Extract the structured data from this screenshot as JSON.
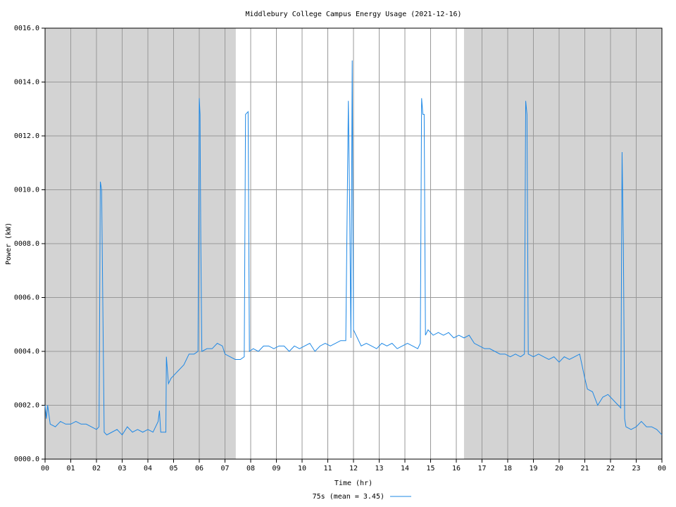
{
  "chart_data": {
    "type": "line",
    "title": "Middlebury College Campus Energy Usage (2021-12-16)",
    "x_label": "Time (hr)",
    "y_label": "Power (kW)",
    "xlim": [
      0,
      24
    ],
    "ylim": [
      0,
      16
    ],
    "xticks": [
      {
        "value": 0,
        "label": "00"
      },
      {
        "value": 1,
        "label": "01"
      },
      {
        "value": 2,
        "label": "02"
      },
      {
        "value": 3,
        "label": "03"
      },
      {
        "value": 4,
        "label": "04"
      },
      {
        "value": 5,
        "label": "05"
      },
      {
        "value": 6,
        "label": "06"
      },
      {
        "value": 7,
        "label": "07"
      },
      {
        "value": 8,
        "label": "08"
      },
      {
        "value": 9,
        "label": "09"
      },
      {
        "value": 10,
        "label": "10"
      },
      {
        "value": 11,
        "label": "11"
      },
      {
        "value": 12,
        "label": "12"
      },
      {
        "value": 13,
        "label": "13"
      },
      {
        "value": 14,
        "label": "14"
      },
      {
        "value": 15,
        "label": "15"
      },
      {
        "value": 16,
        "label": "16"
      },
      {
        "value": 17,
        "label": "17"
      },
      {
        "value": 18,
        "label": "18"
      },
      {
        "value": 19,
        "label": "19"
      },
      {
        "value": 20,
        "label": "20"
      },
      {
        "value": 21,
        "label": "21"
      },
      {
        "value": 22,
        "label": "22"
      },
      {
        "value": 23,
        "label": "23"
      },
      {
        "value": 24,
        "label": "00"
      }
    ],
    "yticks": [
      {
        "value": 0,
        "label": "0000.0"
      },
      {
        "value": 2,
        "label": "0002.0"
      },
      {
        "value": 4,
        "label": "0004.0"
      },
      {
        "value": 6,
        "label": "0006.0"
      },
      {
        "value": 8,
        "label": "0008.0"
      },
      {
        "value": 10,
        "label": "0010.0"
      },
      {
        "value": 12,
        "label": "0012.0"
      },
      {
        "value": 14,
        "label": "0014.0"
      },
      {
        "value": 16,
        "label": "0016.0"
      }
    ],
    "grid": true,
    "shaded_regions": [
      [
        0,
        7.42
      ],
      [
        16.3,
        24
      ]
    ],
    "shade_color": "#d3d3d3",
    "legend": "bottom",
    "x": [
      0.0,
      0.05,
      0.1,
      0.2,
      0.4,
      0.6,
      0.8,
      1.0,
      1.2,
      1.4,
      1.6,
      1.8,
      2.0,
      2.1,
      2.15,
      2.2,
      2.25,
      2.3,
      2.4,
      2.6,
      2.8,
      3.0,
      3.2,
      3.4,
      3.6,
      3.8,
      4.0,
      4.2,
      4.4,
      4.45,
      4.5,
      4.6,
      4.7,
      4.72,
      4.8,
      4.9,
      5.0,
      5.2,
      5.4,
      5.6,
      5.8,
      5.95,
      6.0,
      6.03,
      6.06,
      6.1,
      6.3,
      6.5,
      6.7,
      6.9,
      7.0,
      7.2,
      7.4,
      7.6,
      7.75,
      7.8,
      7.9,
      7.95,
      8.1,
      8.3,
      8.5,
      8.7,
      8.9,
      9.1,
      9.3,
      9.5,
      9.7,
      9.9,
      10.1,
      10.3,
      10.5,
      10.7,
      10.9,
      11.1,
      11.3,
      11.5,
      11.7,
      11.8,
      11.85,
      11.9,
      11.95,
      12.0,
      12.1,
      12.3,
      12.5,
      12.7,
      12.9,
      13.1,
      13.3,
      13.5,
      13.7,
      13.9,
      14.1,
      14.3,
      14.5,
      14.6,
      14.65,
      14.7,
      14.75,
      14.8,
      14.9,
      15.1,
      15.3,
      15.5,
      15.7,
      15.9,
      16.1,
      16.3,
      16.5,
      16.7,
      16.9,
      17.1,
      17.3,
      17.5,
      17.7,
      17.9,
      18.1,
      18.3,
      18.5,
      18.65,
      18.7,
      18.75,
      18.8,
      19.0,
      19.2,
      19.4,
      19.6,
      19.8,
      20.0,
      20.2,
      20.4,
      20.6,
      20.8,
      21.0,
      21.1,
      21.3,
      21.5,
      21.7,
      21.9,
      22.1,
      22.3,
      22.4,
      22.45,
      22.5,
      22.55,
      22.6,
      22.8,
      23.0,
      23.2,
      23.4,
      23.6,
      23.8,
      24.0
    ],
    "series": [
      {
        "name": "75s (mean = 3.45)",
        "color": "#1e88e5",
        "values": [
          2.0,
          1.5,
          2.0,
          1.3,
          1.2,
          1.4,
          1.3,
          1.3,
          1.4,
          1.3,
          1.3,
          1.2,
          1.1,
          1.2,
          10.3,
          10.0,
          5.5,
          1.0,
          0.9,
          1.0,
          1.1,
          0.9,
          1.2,
          1.0,
          1.1,
          1.0,
          1.1,
          1.0,
          1.4,
          1.8,
          1.0,
          1.0,
          1.0,
          3.8,
          2.8,
          3.0,
          3.1,
          3.3,
          3.5,
          3.9,
          3.9,
          4.0,
          13.4,
          12.8,
          8.0,
          4.0,
          4.1,
          4.1,
          4.3,
          4.2,
          3.9,
          3.8,
          3.7,
          3.7,
          3.8,
          12.8,
          12.9,
          4.0,
          4.1,
          4.0,
          4.2,
          4.2,
          4.1,
          4.2,
          4.2,
          4.0,
          4.2,
          4.1,
          4.2,
          4.3,
          4.0,
          4.2,
          4.3,
          4.2,
          4.3,
          4.4,
          4.4,
          13.3,
          9.5,
          4.5,
          14.8,
          4.8,
          4.6,
          4.2,
          4.3,
          4.2,
          4.1,
          4.3,
          4.2,
          4.3,
          4.1,
          4.2,
          4.3,
          4.2,
          4.1,
          4.3,
          13.4,
          12.8,
          12.8,
          4.6,
          4.8,
          4.6,
          4.7,
          4.6,
          4.7,
          4.5,
          4.6,
          4.5,
          4.6,
          4.3,
          4.2,
          4.1,
          4.1,
          4.0,
          3.9,
          3.9,
          3.8,
          3.9,
          3.8,
          3.9,
          13.3,
          12.8,
          3.9,
          3.8,
          3.9,
          3.8,
          3.7,
          3.8,
          3.6,
          3.8,
          3.7,
          3.8,
          3.9,
          3.0,
          2.6,
          2.5,
          2.0,
          2.3,
          2.4,
          2.2,
          2.0,
          1.9,
          11.4,
          8.0,
          1.5,
          1.2,
          1.1,
          1.2,
          1.4,
          1.2,
          1.2,
          1.1,
          0.9
        ]
      }
    ]
  }
}
